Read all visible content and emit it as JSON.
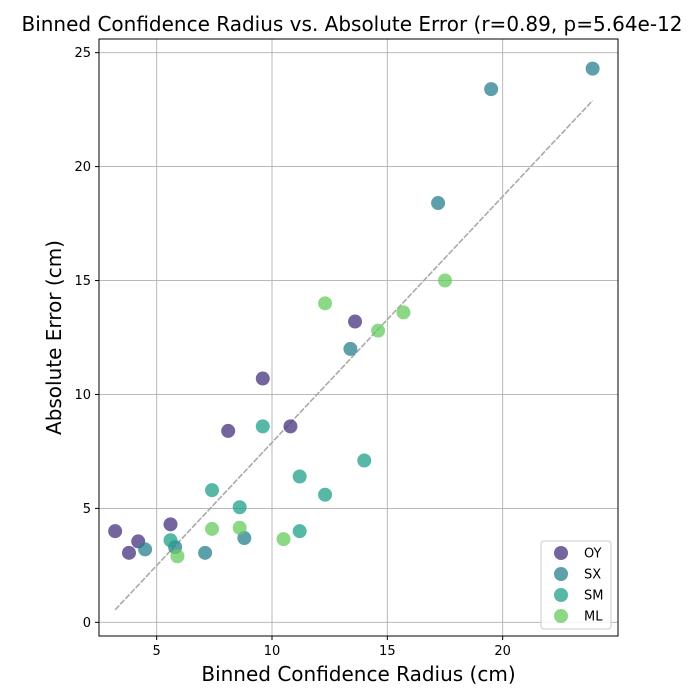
{
  "chart_data": {
    "type": "scatter",
    "title": "Binned Confidence Radius vs. Absolute Error (r=0.89, p=5.64e-12",
    "xlabel": "Binned Confidence Radius (cm)",
    "ylabel": "Absolute Error (cm)",
    "xlim": [
      2.5,
      25.0
    ],
    "ylim": [
      -0.6,
      25.6
    ],
    "x_ticks": [
      5,
      10,
      15,
      20
    ],
    "y_ticks": [
      0,
      5,
      10,
      15,
      20,
      25
    ],
    "grid": true,
    "legend_position": "lower-right",
    "series": [
      {
        "name": "OY",
        "color": "#46327e",
        "points": [
          [
            3.2,
            4.0
          ],
          [
            3.8,
            3.05
          ],
          [
            4.2,
            3.55
          ],
          [
            5.6,
            4.3
          ],
          [
            8.1,
            8.4
          ],
          [
            9.6,
            10.7
          ],
          [
            10.8,
            8.6
          ],
          [
            13.6,
            13.2
          ]
        ]
      },
      {
        "name": "SX",
        "color": "#277f8e",
        "points": [
          [
            4.5,
            3.2
          ],
          [
            5.8,
            3.3
          ],
          [
            7.1,
            3.05
          ],
          [
            8.8,
            3.7
          ],
          [
            13.4,
            12.0
          ],
          [
            17.2,
            18.4
          ],
          [
            19.5,
            23.4
          ],
          [
            23.9,
            24.3
          ]
        ]
      },
      {
        "name": "SM",
        "color": "#1fa187",
        "points": [
          [
            5.6,
            3.6
          ],
          [
            7.4,
            5.8
          ],
          [
            8.6,
            5.05
          ],
          [
            9.6,
            8.6
          ],
          [
            11.2,
            6.4
          ],
          [
            11.2,
            4.0
          ],
          [
            12.3,
            5.6
          ],
          [
            14.0,
            7.1
          ]
        ]
      },
      {
        "name": "ML",
        "color": "#65cb5e",
        "points": [
          [
            5.9,
            2.9
          ],
          [
            7.4,
            4.1
          ],
          [
            8.6,
            4.15
          ],
          [
            10.5,
            3.65
          ],
          [
            12.3,
            14.0
          ],
          [
            14.6,
            12.8
          ],
          [
            15.7,
            13.6
          ],
          [
            17.5,
            15.0
          ]
        ]
      }
    ],
    "fit_line": {
      "color": "#aaaaaa",
      "points": [
        [
          3.2,
          0.55
        ],
        [
          23.9,
          22.9
        ]
      ]
    }
  }
}
